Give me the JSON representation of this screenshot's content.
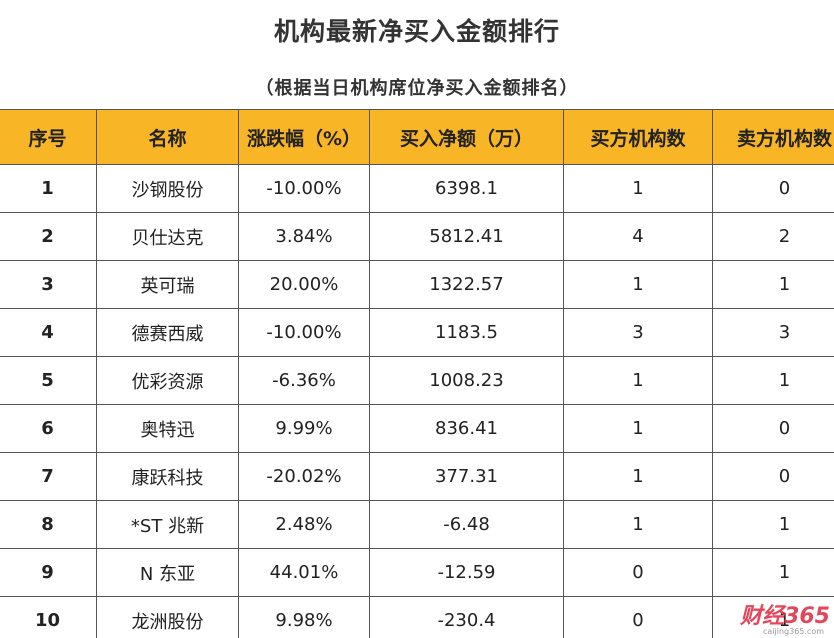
{
  "title": "机构最新净买入金额排行",
  "subtitle": "（根据当日机构席位净买入金额排名）",
  "table": {
    "headers": [
      "序号",
      "名称",
      "涨跌幅（%）",
      "买入净额（万）",
      "买方机构数",
      "卖方机构数"
    ],
    "rows": [
      [
        "1",
        "沙钢股份",
        "-10.00%",
        "6398.1",
        "1",
        "0"
      ],
      [
        "2",
        "贝仕达克",
        "3.84%",
        "5812.41",
        "4",
        "2"
      ],
      [
        "3",
        "英可瑞",
        "20.00%",
        "1322.57",
        "1",
        "1"
      ],
      [
        "4",
        "德赛西威",
        "-10.00%",
        "1183.5",
        "3",
        "3"
      ],
      [
        "5",
        "优彩资源",
        "-6.36%",
        "1008.23",
        "1",
        "1"
      ],
      [
        "6",
        "奥特迅",
        "9.99%",
        "836.41",
        "1",
        "0"
      ],
      [
        "7",
        "康跃科技",
        "-20.02%",
        "377.31",
        "1",
        "0"
      ],
      [
        "8",
        "*ST 兆新",
        "2.48%",
        "-6.48",
        "1",
        "1"
      ],
      [
        "9",
        "N 东亚",
        "44.01%",
        "-12.59",
        "0",
        "1"
      ],
      [
        "10",
        "龙洲股份",
        "9.98%",
        "-230.4",
        "0",
        "1"
      ]
    ]
  },
  "watermark": {
    "logo": "财经365",
    "url": "caijing365.com"
  },
  "colors": {
    "header_bg": "#f8b526",
    "border": "#555555",
    "watermark": "#e0344a"
  }
}
